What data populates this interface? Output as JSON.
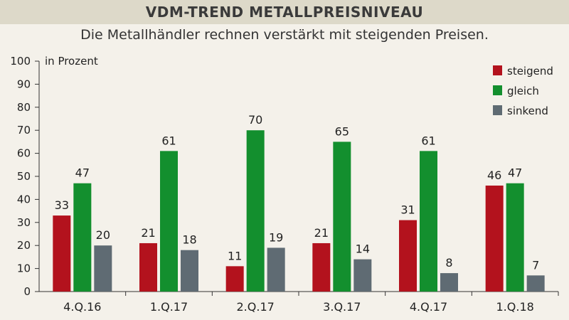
{
  "header": {
    "title": "VDM-TREND METALLPREISNIVEAU"
  },
  "subtitle": "Die Metallhändler rechnen verstärkt mit steigenden Preisen.",
  "chart_data": {
    "type": "bar",
    "ylabel": "in Prozent",
    "ylim": [
      0,
      100
    ],
    "yticks": [
      0,
      10,
      20,
      30,
      40,
      50,
      60,
      70,
      80,
      90,
      100
    ],
    "grid": false,
    "legend_position": "top-right",
    "categories": [
      "4.Q.16",
      "1.Q.17",
      "2.Q.17",
      "3.Q.17",
      "4.Q.17",
      "1.Q.18"
    ],
    "series": [
      {
        "name": "steigend",
        "color": "#b3121d",
        "values": [
          33,
          21,
          11,
          21,
          31,
          46
        ]
      },
      {
        "name": "gleich",
        "color": "#138f2e",
        "values": [
          47,
          61,
          70,
          65,
          61,
          47
        ]
      },
      {
        "name": "sinkend",
        "color": "#5f6b73",
        "values": [
          20,
          18,
          19,
          14,
          8,
          7
        ]
      }
    ]
  }
}
